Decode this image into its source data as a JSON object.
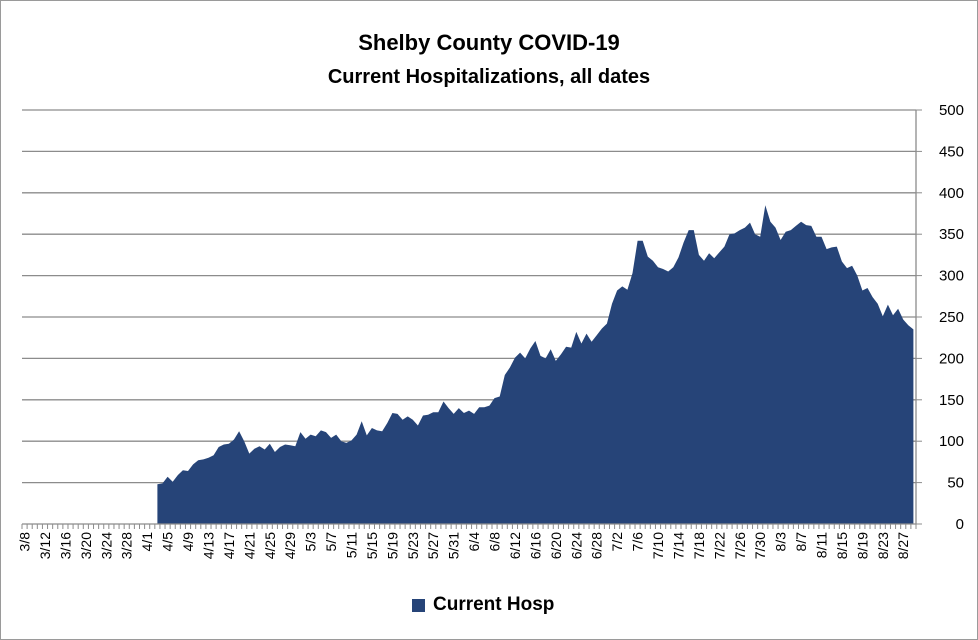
{
  "chart_data": {
    "type": "area",
    "title": "Shelby County COVID-19",
    "subtitle": "Current Hospitalizations, all dates",
    "series": [
      {
        "name": "Current Hosp",
        "color": "#264478",
        "start_date": "3/8",
        "start_index_with_data": 26,
        "anchors": [
          [
            26,
            48
          ],
          [
            27,
            49
          ],
          [
            28,
            57
          ],
          [
            29,
            51
          ],
          [
            30,
            59
          ],
          [
            31,
            65
          ],
          [
            32,
            64
          ],
          [
            33,
            72
          ],
          [
            34,
            77
          ],
          [
            35,
            78
          ],
          [
            36,
            80
          ],
          [
            37,
            83
          ],
          [
            38,
            93
          ],
          [
            39,
            96
          ],
          [
            40,
            97
          ],
          [
            41,
            102
          ],
          [
            42,
            112
          ],
          [
            43,
            100
          ],
          [
            44,
            85
          ],
          [
            45,
            91
          ],
          [
            46,
            94
          ],
          [
            47,
            90
          ],
          [
            48,
            97
          ],
          [
            49,
            87
          ],
          [
            50,
            93
          ],
          [
            51,
            96
          ],
          [
            52,
            95
          ],
          [
            53,
            94
          ],
          [
            54,
            111
          ],
          [
            55,
            103
          ],
          [
            56,
            108
          ],
          [
            57,
            106
          ],
          [
            58,
            113
          ],
          [
            59,
            111
          ],
          [
            60,
            104
          ],
          [
            61,
            108
          ],
          [
            62,
            100
          ],
          [
            63,
            98
          ],
          [
            64,
            101
          ],
          [
            65,
            108
          ],
          [
            66,
            124
          ],
          [
            67,
            107
          ],
          [
            68,
            116
          ],
          [
            69,
            113
          ],
          [
            70,
            112
          ],
          [
            71,
            122
          ],
          [
            72,
            134
          ],
          [
            73,
            133
          ],
          [
            74,
            126
          ],
          [
            75,
            130
          ],
          [
            76,
            126
          ],
          [
            77,
            119
          ],
          [
            78,
            131
          ],
          [
            79,
            132
          ],
          [
            80,
            135
          ],
          [
            81,
            135
          ],
          [
            82,
            148
          ],
          [
            83,
            140
          ],
          [
            84,
            133
          ],
          [
            85,
            140
          ],
          [
            86,
            134
          ],
          [
            87,
            137
          ],
          [
            88,
            133
          ],
          [
            89,
            141
          ],
          [
            90,
            141
          ],
          [
            91,
            143
          ],
          [
            92,
            152
          ],
          [
            93,
            154
          ],
          [
            94,
            180
          ],
          [
            95,
            189
          ],
          [
            96,
            201
          ],
          [
            97,
            207
          ],
          [
            98,
            200
          ],
          [
            99,
            212
          ],
          [
            100,
            221
          ],
          [
            101,
            203
          ],
          [
            102,
            200
          ],
          [
            103,
            211
          ],
          [
            104,
            197
          ],
          [
            105,
            205
          ],
          [
            106,
            214
          ],
          [
            107,
            213
          ],
          [
            108,
            232
          ],
          [
            109,
            218
          ],
          [
            110,
            230
          ],
          [
            111,
            220
          ],
          [
            112,
            228
          ],
          [
            113,
            236
          ],
          [
            114,
            242
          ],
          [
            115,
            266
          ],
          [
            116,
            282
          ],
          [
            117,
            287
          ],
          [
            118,
            283
          ],
          [
            119,
            303
          ],
          [
            120,
            342
          ],
          [
            121,
            342
          ],
          [
            122,
            323
          ],
          [
            123,
            318
          ],
          [
            124,
            310
          ],
          [
            125,
            308
          ],
          [
            126,
            305
          ],
          [
            127,
            310
          ],
          [
            128,
            322
          ],
          [
            129,
            340
          ],
          [
            130,
            355
          ],
          [
            131,
            355
          ],
          [
            132,
            325
          ],
          [
            133,
            318
          ],
          [
            134,
            327
          ],
          [
            135,
            321
          ],
          [
            136,
            328
          ],
          [
            137,
            335
          ],
          [
            138,
            350
          ],
          [
            139,
            351
          ],
          [
            140,
            355
          ],
          [
            141,
            358
          ],
          [
            142,
            364
          ],
          [
            143,
            350
          ],
          [
            144,
            347
          ],
          [
            145,
            385
          ],
          [
            146,
            365
          ],
          [
            147,
            358
          ],
          [
            148,
            343
          ],
          [
            149,
            353
          ],
          [
            150,
            355
          ],
          [
            151,
            360
          ],
          [
            152,
            365
          ],
          [
            153,
            361
          ],
          [
            154,
            360
          ],
          [
            155,
            347
          ],
          [
            156,
            347
          ],
          [
            157,
            332
          ],
          [
            158,
            334
          ],
          [
            159,
            335
          ],
          [
            160,
            317
          ],
          [
            161,
            309
          ],
          [
            162,
            312
          ],
          [
            163,
            300
          ],
          [
            164,
            282
          ],
          [
            165,
            285
          ],
          [
            166,
            274
          ],
          [
            167,
            266
          ],
          [
            168,
            251
          ],
          [
            169,
            265
          ],
          [
            170,
            252
          ],
          [
            171,
            260
          ],
          [
            172,
            247
          ],
          [
            173,
            240
          ],
          [
            174,
            235
          ]
        ]
      }
    ],
    "x_tick_labels": [
      "3/8",
      "3/12",
      "3/16",
      "3/20",
      "3/24",
      "3/28",
      "4/1",
      "4/5",
      "4/9",
      "4/13",
      "4/17",
      "4/21",
      "4/25",
      "4/29",
      "5/3",
      "5/7",
      "5/11",
      "5/15",
      "5/19",
      "5/23",
      "5/27",
      "5/31",
      "6/4",
      "6/8",
      "6/12",
      "6/16",
      "6/20",
      "6/24",
      "6/28",
      "7/2",
      "7/6",
      "7/10",
      "7/14",
      "7/18",
      "7/22",
      "7/26",
      "7/30",
      "8/3",
      "8/7",
      "8/11",
      "8/15",
      "8/19",
      "8/23",
      "8/27"
    ],
    "x_tick_step_days": 4,
    "n_days": 175,
    "y_ticks": [
      "0",
      "50",
      "100",
      "150",
      "200",
      "250",
      "300",
      "350",
      "400",
      "450",
      "500"
    ],
    "ylim": [
      0,
      500
    ],
    "y_axis_side": "right",
    "grid": true,
    "legend_position": "bottom"
  }
}
